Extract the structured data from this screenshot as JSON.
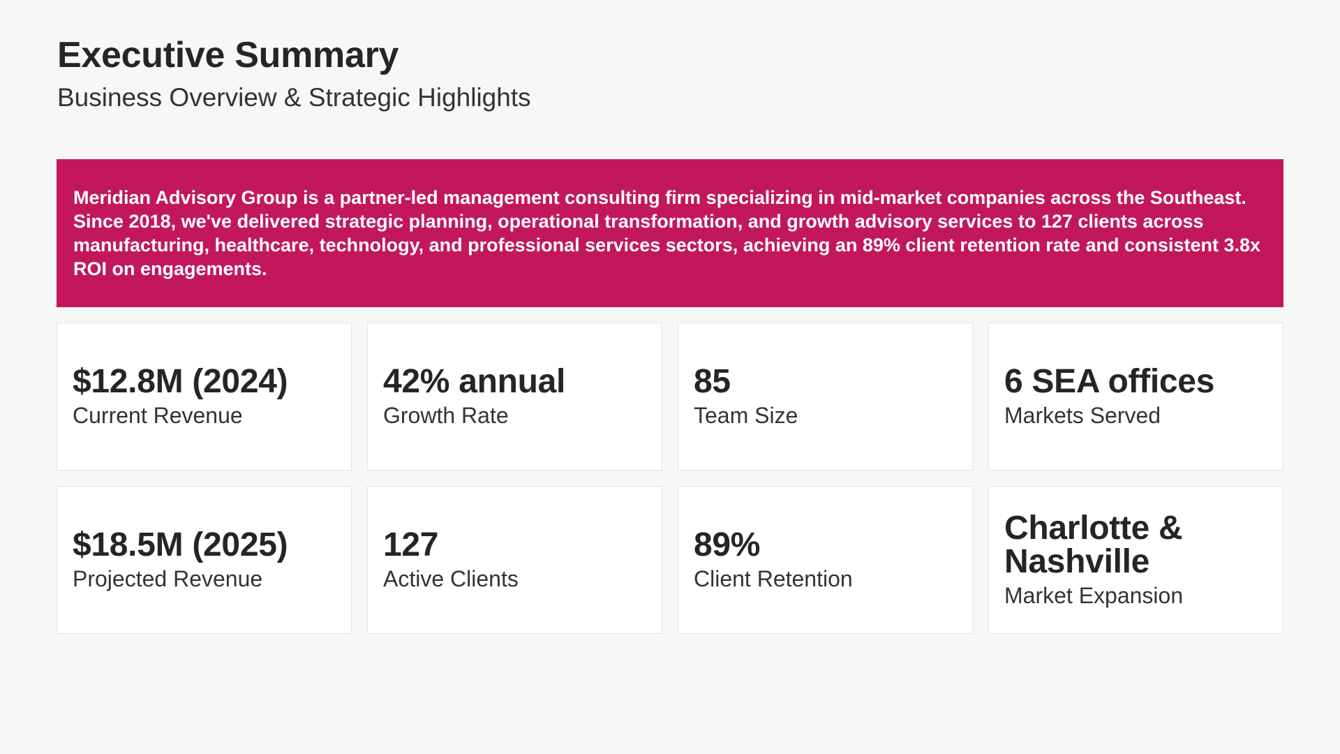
{
  "header": {
    "title": "Executive Summary",
    "subtitle": "Business Overview & Strategic Highlights"
  },
  "summary": {
    "text": "Meridian Advisory Group is a partner-led management consulting firm specializing in mid-market companies across the Southeast. Since 2018, we've delivered strategic planning, operational transformation, and growth advisory services to 127 clients across manufacturing, healthcare, technology, and professional services sectors, achieving an 89% client retention rate and consistent 3.8x ROI on engagements."
  },
  "metrics": [
    {
      "value": "$12.8M (2024)",
      "label": "Current Revenue"
    },
    {
      "value": "42% annual",
      "label": "Growth Rate"
    },
    {
      "value": "85",
      "label": "Team Size"
    },
    {
      "value": "6 SEA offices",
      "label": "Markets Served"
    },
    {
      "value": "$18.5M (2025)",
      "label": "Projected Revenue"
    },
    {
      "value": "127",
      "label": "Active Clients"
    },
    {
      "value": "89%",
      "label": "Client Retention"
    },
    {
      "value": "Charlotte & Nashville",
      "label": "Market Expansion"
    }
  ],
  "colors": {
    "accent": "#c2185b",
    "background": "#f7f7f7",
    "card_background": "#ffffff",
    "card_border": "#eadde3",
    "text": "#252525"
  }
}
